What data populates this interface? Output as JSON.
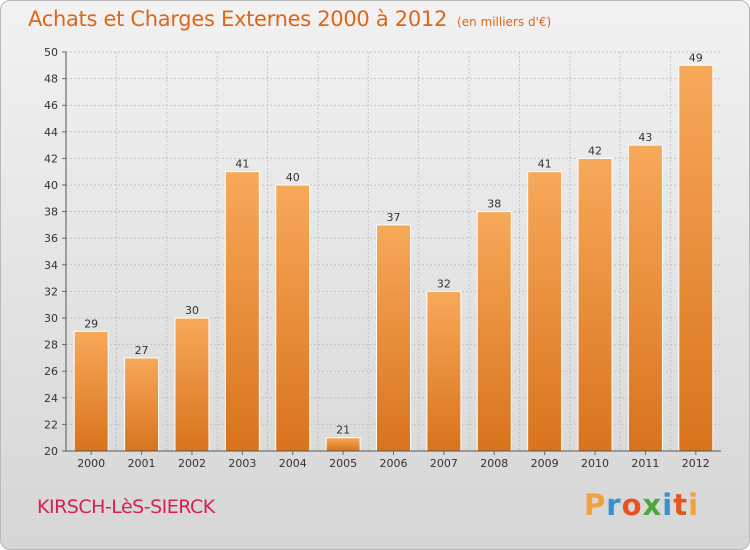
{
  "title": "Achats et Charges Externes 2000 à 2012",
  "subtitle": "(en milliers d'€)",
  "location": "KIRSCH-LèS-SIERCK",
  "brand": {
    "letters": [
      "P",
      "r",
      "o",
      "x",
      "i",
      "t",
      "i"
    ],
    "colors": [
      "#f4a13a",
      "#3a8fd1",
      "#e8541f",
      "#4aa83c",
      "#3a8fd1",
      "#e8541f",
      "#f4a13a"
    ]
  },
  "colors": {
    "title": "#e0651a",
    "location": "#d5224f",
    "bar_light": "#f7a95a",
    "bar_dark": "#d9731c"
  },
  "chart_data": {
    "type": "bar",
    "categories": [
      "2000",
      "2001",
      "2002",
      "2003",
      "2004",
      "2005",
      "2006",
      "2007",
      "2008",
      "2009",
      "2010",
      "2011",
      "2012"
    ],
    "values": [
      29,
      27,
      30,
      41,
      40,
      21,
      37,
      32,
      38,
      41,
      42,
      43,
      49
    ],
    "ylim": [
      20,
      50
    ],
    "yticks": [
      20,
      22,
      24,
      26,
      28,
      30,
      32,
      34,
      36,
      38,
      40,
      42,
      44,
      46,
      48,
      50
    ],
    "grid": true,
    "xlabel": "",
    "ylabel": ""
  }
}
